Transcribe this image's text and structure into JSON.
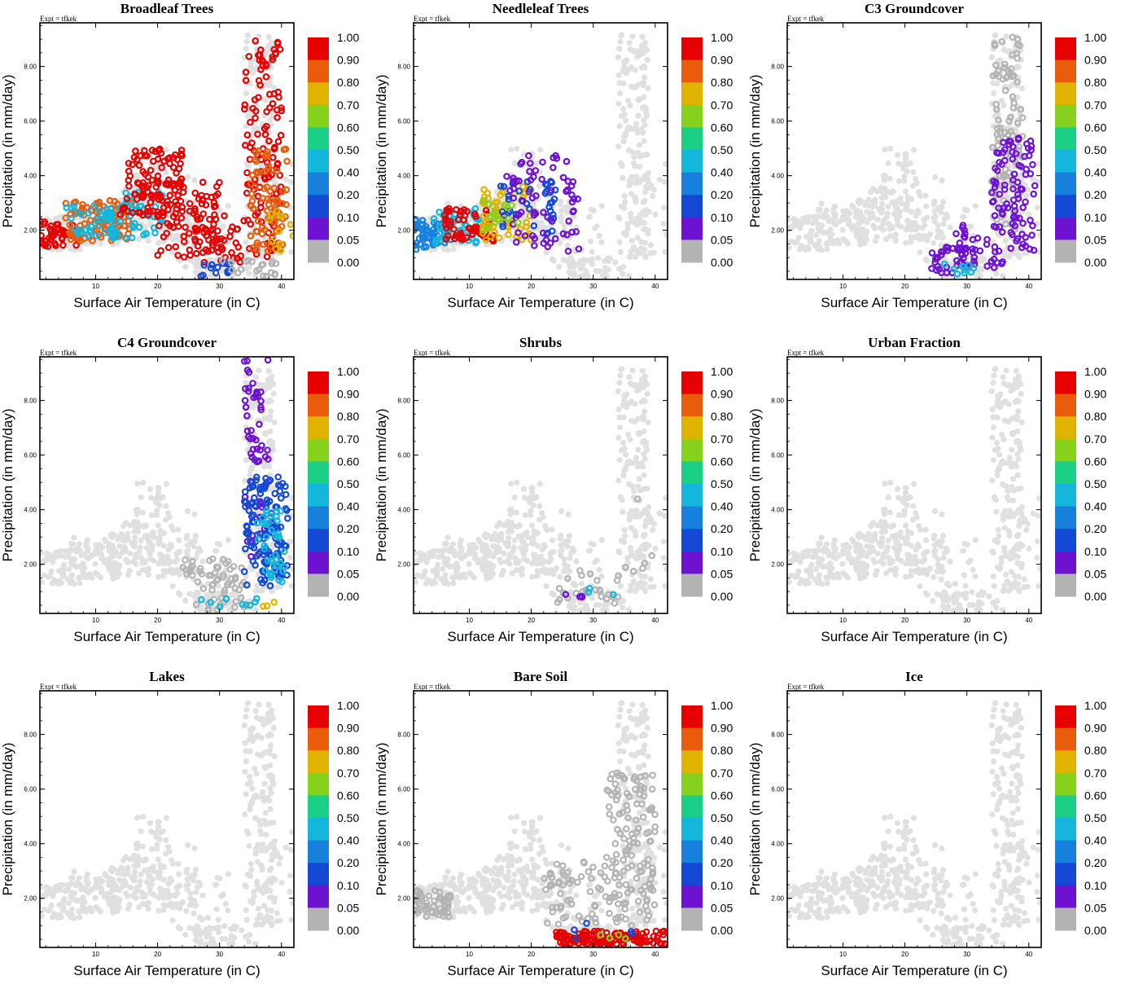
{
  "chart_data": [
    {
      "type": "scatter",
      "title": "Broadleaf Trees",
      "annotation": "Expt = tfkek",
      "xlabel": "Surface Air Temperature (in C)",
      "ylabel": "Precipitation (in mm/day)",
      "xlim": [
        1,
        42
      ],
      "ylim": [
        0.2,
        9.6
      ],
      "xticks": [
        "10",
        "20",
        "30",
        "40"
      ],
      "yticks": [
        "2.00",
        "4.00",
        "6.00",
        "8.00"
      ],
      "colorbar": {
        "levels": [
          "1.00",
          "0.90",
          "0.80",
          "0.70",
          "0.60",
          "0.50",
          "0.40",
          "0.20",
          "0.10",
          "0.05",
          "0.00"
        ]
      },
      "highlight": [
        {
          "x": [
            1,
            7
          ],
          "y": [
            1.4,
            2.4
          ],
          "value": 0.85,
          "n": 50
        },
        {
          "x": [
            5,
            16
          ],
          "y": [
            1.6,
            3.1
          ],
          "value": 0.8,
          "n": 90
        },
        {
          "x": [
            5,
            13
          ],
          "y": [
            1.7,
            2.9
          ],
          "value": 0.3,
          "n": 40
        },
        {
          "x": [
            12,
            21
          ],
          "y": [
            1.6,
            3.4
          ],
          "value": 0.4,
          "n": 50
        },
        {
          "x": [
            14,
            24
          ],
          "y": [
            2.5,
            5.0
          ],
          "value": 0.95,
          "n": 110
        },
        {
          "x": [
            20,
            30
          ],
          "y": [
            1.0,
            3.8
          ],
          "value": 0.95,
          "n": 80
        },
        {
          "x": [
            26,
            34
          ],
          "y": [
            0.8,
            2.6
          ],
          "value": 0.9,
          "n": 40
        },
        {
          "x": [
            25,
            33
          ],
          "y": [
            0.3,
            0.8
          ],
          "value": 0.1,
          "n": 14
        },
        {
          "x": [
            34,
            40
          ],
          "y": [
            1.0,
            9.0
          ],
          "value": 0.95,
          "n": 120
        },
        {
          "x": [
            35,
            41
          ],
          "y": [
            1.2,
            5.0
          ],
          "value": 0.8,
          "n": 70
        },
        {
          "x": [
            38,
            42
          ],
          "y": [
            1.2,
            2.8
          ],
          "value": 0.7,
          "n": 14
        },
        {
          "x": [
            30,
            40
          ],
          "y": [
            0.3,
            0.9
          ],
          "value": 0.0,
          "n": 20
        }
      ]
    },
    {
      "type": "scatter",
      "title": "Needleleaf Trees",
      "annotation": "Expt = tfkek",
      "xlabel": "Surface Air Temperature (in C)",
      "ylabel": "Precipitation (in mm/day)",
      "xlim": [
        1,
        42
      ],
      "ylim": [
        0.2,
        9.6
      ],
      "xticks": [
        "10",
        "20",
        "30",
        "40"
      ],
      "yticks": [
        "2.00",
        "4.00",
        "6.00",
        "8.00"
      ],
      "colorbar": {
        "levels": [
          "1.00",
          "0.90",
          "0.80",
          "0.70",
          "0.60",
          "0.50",
          "0.40",
          "0.20",
          "0.10",
          "0.05",
          "0.00"
        ]
      },
      "highlight": [
        {
          "x": [
            1,
            7
          ],
          "y": [
            1.3,
            2.4
          ],
          "value": 0.15,
          "n": 60
        },
        {
          "x": [
            4,
            12
          ],
          "y": [
            1.5,
            2.8
          ],
          "value": 0.3,
          "n": 50
        },
        {
          "x": [
            6,
            14
          ],
          "y": [
            1.6,
            2.8
          ],
          "value": 0.85,
          "n": 60
        },
        {
          "x": [
            12,
            20
          ],
          "y": [
            1.6,
            3.6
          ],
          "value": 0.7,
          "n": 60
        },
        {
          "x": [
            15,
            24
          ],
          "y": [
            1.8,
            3.8
          ],
          "value": 0.1,
          "n": 40
        },
        {
          "x": [
            16,
            28
          ],
          "y": [
            1.2,
            4.8
          ],
          "value": 0.05,
          "n": 70
        },
        {
          "x": [
            12,
            18
          ],
          "y": [
            2.0,
            3.2
          ],
          "value": 0.55,
          "n": 15
        }
      ]
    },
    {
      "type": "scatter",
      "title": "C3 Groundcover",
      "annotation": "Expt = tfkek",
      "xlabel": "Surface Air Temperature (in C)",
      "ylabel": "Precipitation (in mm/day)",
      "xlim": [
        1,
        42
      ],
      "ylim": [
        0.2,
        9.6
      ],
      "xticks": [
        "10",
        "20",
        "30",
        "40"
      ],
      "yticks": [
        "2.00",
        "4.00",
        "6.00",
        "8.00"
      ],
      "colorbar": {
        "levels": [
          "1.00",
          "0.90",
          "0.80",
          "0.70",
          "0.60",
          "0.50",
          "0.40",
          "0.20",
          "0.10",
          "0.05",
          "0.00"
        ]
      },
      "highlight": [
        {
          "x": [
            34,
            39
          ],
          "y": [
            2.0,
            9.2
          ],
          "value": 0.0,
          "n": 90
        },
        {
          "x": [
            24,
            30
          ],
          "y": [
            0.4,
            1.4
          ],
          "value": 0.05,
          "n": 30
        },
        {
          "x": [
            28,
            36
          ],
          "y": [
            0.6,
            2.2
          ],
          "value": 0.05,
          "n": 40
        },
        {
          "x": [
            34,
            41
          ],
          "y": [
            1.2,
            5.4
          ],
          "value": 0.05,
          "n": 90
        },
        {
          "x": [
            26,
            32
          ],
          "y": [
            0.3,
            0.8
          ],
          "value": 0.3,
          "n": 10
        }
      ]
    },
    {
      "type": "scatter",
      "title": "C4 Groundcover",
      "annotation": "Expt = tfkek",
      "xlabel": "Surface Air Temperature (in C)",
      "ylabel": "Precipitation (in mm/day)",
      "xlim": [
        1,
        42
      ],
      "ylim": [
        0.2,
        9.6
      ],
      "xticks": [
        "10",
        "20",
        "30",
        "40"
      ],
      "yticks": [
        "2.00",
        "4.00",
        "6.00",
        "8.00"
      ],
      "colorbar": {
        "levels": [
          "1.00",
          "0.90",
          "0.80",
          "0.70",
          "0.60",
          "0.50",
          "0.40",
          "0.20",
          "0.10",
          "0.05",
          "0.00"
        ]
      },
      "highlight": [
        {
          "x": [
            24,
            34
          ],
          "y": [
            0.3,
            2.2
          ],
          "value": 0.0,
          "n": 60
        },
        {
          "x": [
            34,
            38
          ],
          "y": [
            2.2,
            9.6
          ],
          "value": 0.05,
          "n": 60
        },
        {
          "x": [
            34,
            41
          ],
          "y": [
            1.2,
            5.2
          ],
          "value": 0.1,
          "n": 120
        },
        {
          "x": [
            36,
            41
          ],
          "y": [
            1.2,
            4.0
          ],
          "value": 0.3,
          "n": 40
        },
        {
          "x": [
            26,
            36
          ],
          "y": [
            0.3,
            0.9
          ],
          "value": 0.3,
          "n": 10
        },
        {
          "x": [
            36,
            40
          ],
          "y": [
            0.4,
            1.0
          ],
          "value": 0.7,
          "n": 3
        }
      ]
    },
    {
      "type": "scatter",
      "title": "Shrubs",
      "annotation": "Expt = tfkek",
      "xlabel": "Surface Air Temperature (in C)",
      "ylabel": "Precipitation (in mm/day)",
      "xlim": [
        1,
        42
      ],
      "ylim": [
        0.2,
        9.6
      ],
      "xticks": [
        "10",
        "20",
        "30",
        "40"
      ],
      "yticks": [
        "2.00",
        "4.00",
        "6.00",
        "8.00"
      ],
      "colorbar": {
        "levels": [
          "1.00",
          "0.90",
          "0.80",
          "0.70",
          "0.60",
          "0.50",
          "0.40",
          "0.20",
          "0.10",
          "0.05",
          "0.00"
        ]
      },
      "highlight": [
        {
          "x": [
            24,
            35
          ],
          "y": [
            0.5,
            1.8
          ],
          "value": 0.0,
          "n": 25
        },
        {
          "x": [
            25,
            30
          ],
          "y": [
            0.6,
            1.0
          ],
          "value": 0.05,
          "n": 4
        },
        {
          "x": [
            28,
            34
          ],
          "y": [
            0.8,
            1.2
          ],
          "value": 0.3,
          "n": 3
        },
        {
          "x": [
            35,
            40
          ],
          "y": [
            1.5,
            4.5
          ],
          "value": 0.0,
          "n": 6
        }
      ]
    },
    {
      "type": "scatter",
      "title": "Urban Fraction",
      "annotation": "Expt = tfkek",
      "xlabel": "Surface Air Temperature (in C)",
      "ylabel": "Precipitation (in mm/day)",
      "xlim": [
        1,
        42
      ],
      "ylim": [
        0.2,
        9.6
      ],
      "xticks": [
        "10",
        "20",
        "30",
        "40"
      ],
      "yticks": [
        "2.00",
        "4.00",
        "6.00",
        "8.00"
      ],
      "colorbar": {
        "levels": [
          "1.00",
          "0.90",
          "0.80",
          "0.70",
          "0.60",
          "0.50",
          "0.40",
          "0.20",
          "0.10",
          "0.05",
          "0.00"
        ]
      },
      "highlight": []
    },
    {
      "type": "scatter",
      "title": "Lakes",
      "annotation": "Expt = tfkek",
      "xlabel": "Surface Air Temperature (in C)",
      "ylabel": "Precipitation (in mm/day)",
      "xlim": [
        1,
        42
      ],
      "ylim": [
        0.2,
        9.6
      ],
      "xticks": [
        "10",
        "20",
        "30",
        "40"
      ],
      "yticks": [
        "2.00",
        "4.00",
        "6.00",
        "8.00"
      ],
      "colorbar": {
        "levels": [
          "1.00",
          "0.90",
          "0.80",
          "0.70",
          "0.60",
          "0.50",
          "0.40",
          "0.20",
          "0.10",
          "0.05",
          "0.00"
        ]
      },
      "highlight": []
    },
    {
      "type": "scatter",
      "title": "Bare Soil",
      "annotation": "Expt = tfkek",
      "xlabel": "Surface Air Temperature (in C)",
      "ylabel": "Precipitation (in mm/day)",
      "xlim": [
        1,
        42
      ],
      "ylim": [
        0.2,
        9.6
      ],
      "xticks": [
        "10",
        "20",
        "30",
        "40"
      ],
      "yticks": [
        "2.00",
        "4.00",
        "6.00",
        "8.00"
      ],
      "colorbar": {
        "levels": [
          "1.00",
          "0.90",
          "0.80",
          "0.70",
          "0.60",
          "0.50",
          "0.40",
          "0.20",
          "0.10",
          "0.05",
          "0.00"
        ]
      },
      "highlight": [
        {
          "x": [
            1,
            7
          ],
          "y": [
            1.3,
            2.4
          ],
          "value": 0.0,
          "n": 50
        },
        {
          "x": [
            22,
            34
          ],
          "y": [
            1.0,
            3.4
          ],
          "value": 0.0,
          "n": 60
        },
        {
          "x": [
            32,
            40
          ],
          "y": [
            1.0,
            6.6
          ],
          "value": 0.0,
          "n": 130
        },
        {
          "x": [
            24,
            42
          ],
          "y": [
            0.3,
            0.8
          ],
          "value": 0.95,
          "n": 130
        },
        {
          "x": [
            26,
            38
          ],
          "y": [
            0.5,
            1.1
          ],
          "value": 0.1,
          "n": 5
        },
        {
          "x": [
            28,
            36
          ],
          "y": [
            0.5,
            0.7
          ],
          "value": 0.6,
          "n": 4
        }
      ]
    },
    {
      "type": "scatter",
      "title": "Ice",
      "annotation": "Expt = tfkek",
      "xlabel": "Surface Air Temperature (in C)",
      "ylabel": "Precipitation (in mm/day)",
      "xlim": [
        1,
        42
      ],
      "ylim": [
        0.2,
        9.6
      ],
      "xticks": [
        "10",
        "20",
        "30",
        "40"
      ],
      "yticks": [
        "2.00",
        "4.00",
        "6.00",
        "8.00"
      ],
      "colorbar": {
        "levels": [
          "1.00",
          "0.90",
          "0.80",
          "0.70",
          "0.60",
          "0.50",
          "0.40",
          "0.20",
          "0.10",
          "0.05",
          "0.00"
        ]
      },
      "highlight": []
    }
  ],
  "background_cloud": [
    {
      "x": [
        1,
        8
      ],
      "y": [
        1.2,
        2.5
      ],
      "n": 60
    },
    {
      "x": [
        6,
        14
      ],
      "y": [
        1.4,
        3.0
      ],
      "n": 70
    },
    {
      "x": [
        12,
        19
      ],
      "y": [
        1.6,
        3.6
      ],
      "n": 70
    },
    {
      "x": [
        16,
        22
      ],
      "y": [
        2.0,
        5.0
      ],
      "n": 60
    },
    {
      "x": [
        20,
        27
      ],
      "y": [
        1.5,
        4.0
      ],
      "n": 40
    },
    {
      "x": [
        22,
        32
      ],
      "y": [
        0.6,
        3.0
      ],
      "n": 50
    },
    {
      "x": [
        26,
        36
      ],
      "y": [
        0.3,
        1.0
      ],
      "n": 40
    },
    {
      "x": [
        34,
        39
      ],
      "y": [
        1.0,
        9.2
      ],
      "n": 150
    },
    {
      "x": [
        36,
        42
      ],
      "y": [
        1.0,
        4.5
      ],
      "n": 40
    }
  ],
  "colors": {
    "levels": [
      "#e60000",
      "#e85c0c",
      "#e0b300",
      "#85d11c",
      "#1bcf86",
      "#14b6dc",
      "#1680dc",
      "#1449d6",
      "#6e12d2",
      "#b3b3b3"
    ],
    "background_points": "#e0e0e0"
  }
}
